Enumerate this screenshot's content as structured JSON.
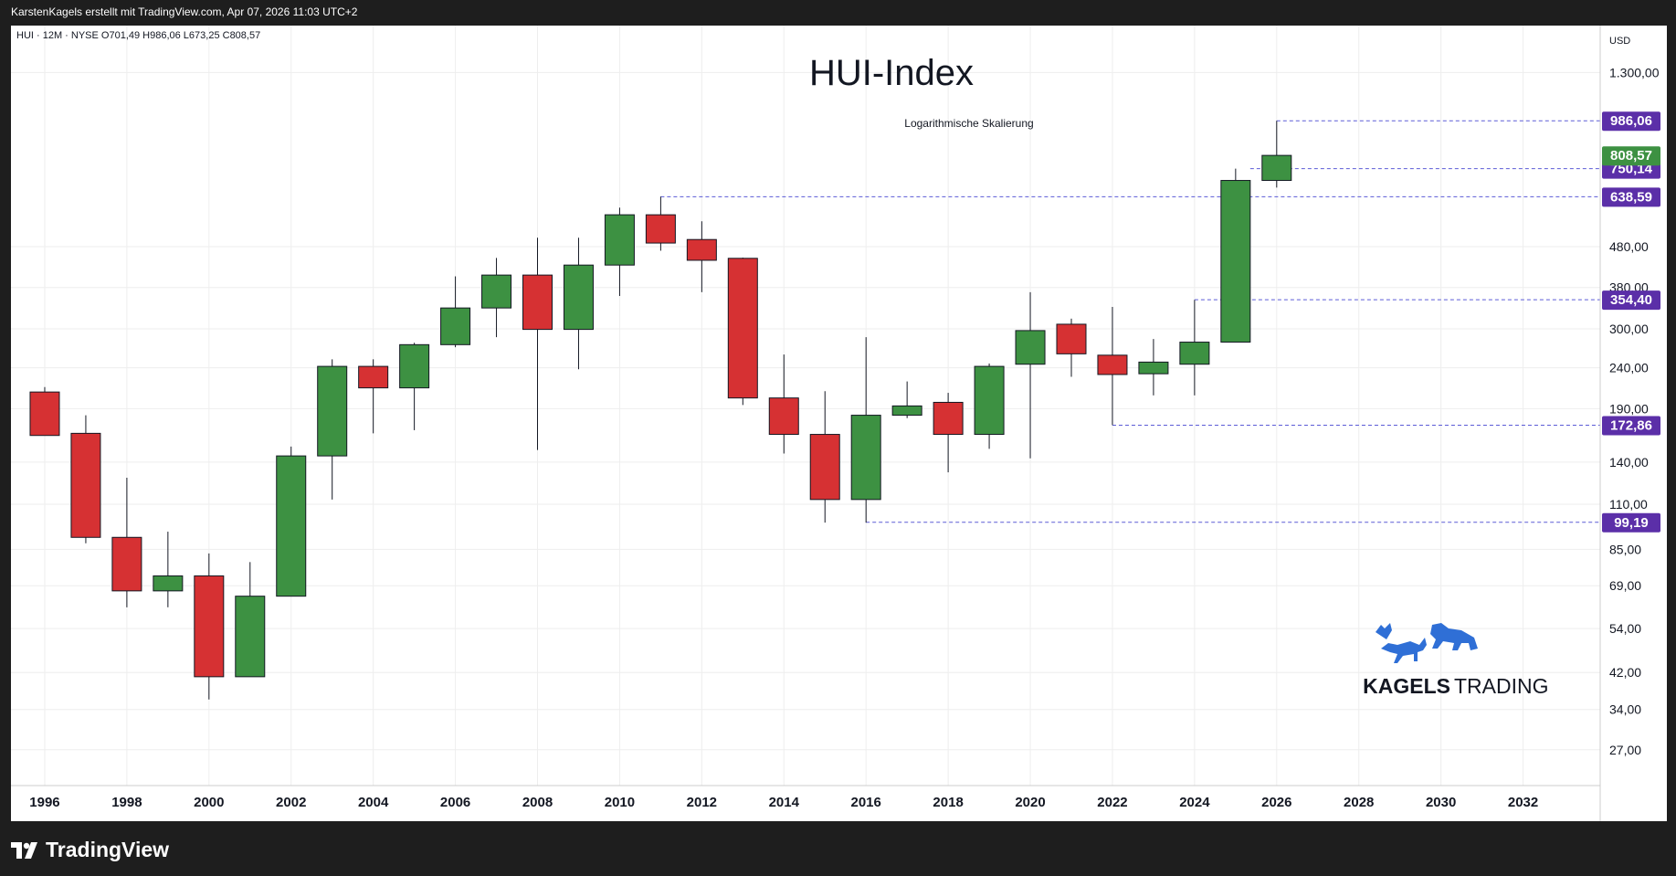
{
  "header": {
    "attribution": "KarstenKagels erstellt mit TradingView.com, Apr 07, 2026 11:03 UTC+2",
    "symbol_line": "HUI · 12M · NYSE  O701,49  H986,06  L673,25  C808,57"
  },
  "chart": {
    "title": "HUI-Index",
    "subtitle": "Logarithmische Skalierung",
    "currency": "USD"
  },
  "branding": {
    "kagels": "KAGELS TRADING",
    "kagels_word1": "KAGELS",
    "kagels_word2": "TRADING",
    "tradingview": "TradingView"
  },
  "colors": {
    "up": "#3d9142",
    "down": "#d63133",
    "price_marker": "#5b2fa8",
    "last_marker": "#3d9142",
    "grid": "#eeeeee",
    "dashed": "#5b5bd6"
  },
  "chart_data": {
    "type": "candlestick",
    "scale": "log",
    "ylim": [
      22,
      1700
    ],
    "xlim": [
      1995.4,
      2033.7
    ],
    "x_ticks": [
      "1996",
      "1998",
      "2000",
      "2002",
      "2004",
      "2006",
      "2008",
      "2010",
      "2012",
      "2014",
      "2016",
      "2018",
      "2020",
      "2022",
      "2024",
      "2026",
      "2028",
      "2030",
      "2032"
    ],
    "y_ticks": [
      {
        "value": 1300,
        "label": "1.300,00"
      },
      {
        "value": 480,
        "label": "480,00"
      },
      {
        "value": 380,
        "label": "380,00"
      },
      {
        "value": 300,
        "label": "300,00"
      },
      {
        "value": 240,
        "label": "240,00"
      },
      {
        "value": 190,
        "label": "190,00"
      },
      {
        "value": 140,
        "label": "140,00"
      },
      {
        "value": 110,
        "label": "110,00"
      },
      {
        "value": 85,
        "label": "85,00"
      },
      {
        "value": 69,
        "label": "69,00"
      },
      {
        "value": 54,
        "label": "54,00"
      },
      {
        "value": 42,
        "label": "42,00"
      },
      {
        "value": 34,
        "label": "34,00"
      },
      {
        "value": 27,
        "label": "27,00"
      }
    ],
    "candles": [
      {
        "year": 1996,
        "open": 209,
        "high": 215,
        "low": 163,
        "close": 163
      },
      {
        "year": 1997,
        "open": 165,
        "high": 183,
        "low": 88,
        "close": 91
      },
      {
        "year": 1998,
        "open": 91,
        "high": 128,
        "low": 61,
        "close": 67
      },
      {
        "year": 1999,
        "open": 67,
        "high": 94,
        "low": 61,
        "close": 73
      },
      {
        "year": 2000,
        "open": 73,
        "high": 83,
        "low": 36,
        "close": 41
      },
      {
        "year": 2001,
        "open": 41,
        "high": 79,
        "low": 41,
        "close": 65
      },
      {
        "year": 2002,
        "open": 65,
        "high": 153,
        "low": 65,
        "close": 145
      },
      {
        "year": 2003,
        "open": 145,
        "high": 252,
        "low": 113,
        "close": 242
      },
      {
        "year": 2004,
        "open": 242,
        "high": 252,
        "low": 165,
        "close": 214
      },
      {
        "year": 2005,
        "open": 214,
        "high": 277,
        "low": 168,
        "close": 274
      },
      {
        "year": 2006,
        "open": 274,
        "high": 405,
        "low": 270,
        "close": 338
      },
      {
        "year": 2007,
        "open": 338,
        "high": 450,
        "low": 286,
        "close": 408
      },
      {
        "year": 2008,
        "open": 408,
        "high": 505,
        "low": 150,
        "close": 299
      },
      {
        "year": 2009,
        "open": 299,
        "high": 505,
        "low": 238,
        "close": 432
      },
      {
        "year": 2010,
        "open": 432,
        "high": 600,
        "low": 362,
        "close": 576
      },
      {
        "year": 2011,
        "open": 576,
        "high": 639,
        "low": 469,
        "close": 490
      },
      {
        "year": 2012,
        "open": 500,
        "high": 555,
        "low": 370,
        "close": 444
      },
      {
        "year": 2013,
        "open": 449,
        "high": 451,
        "low": 194,
        "close": 202
      },
      {
        "year": 2014,
        "open": 202,
        "high": 259,
        "low": 147,
        "close": 164
      },
      {
        "year": 2015,
        "open": 164,
        "high": 210,
        "low": 99,
        "close": 113
      },
      {
        "year": 2016,
        "open": 113,
        "high": 286,
        "low": 99,
        "close": 183
      },
      {
        "year": 2017,
        "open": 183,
        "high": 222,
        "low": 180,
        "close": 193
      },
      {
        "year": 2018,
        "open": 197,
        "high": 208,
        "low": 132,
        "close": 164
      },
      {
        "year": 2019,
        "open": 164,
        "high": 246,
        "low": 151,
        "close": 242
      },
      {
        "year": 2020,
        "open": 245,
        "high": 370,
        "low": 143,
        "close": 297
      },
      {
        "year": 2021,
        "open": 308,
        "high": 318,
        "low": 228,
        "close": 260
      },
      {
        "year": 2022,
        "open": 258,
        "high": 340,
        "low": 173,
        "close": 231
      },
      {
        "year": 2023,
        "open": 232,
        "high": 283,
        "low": 205,
        "close": 248
      },
      {
        "year": 2024,
        "open": 245,
        "high": 354,
        "low": 205,
        "close": 278
      },
      {
        "year": 2025,
        "open": 278,
        "high": 750,
        "low": 278,
        "close": 701
      },
      {
        "year": 2026,
        "open": 701,
        "high": 986,
        "low": 673,
        "close": 809
      }
    ],
    "levels": [
      {
        "value": 986.06,
        "label": "986,06",
        "from": 2026
      },
      {
        "value": 750.14,
        "label": "750,14",
        "from": 2025
      },
      {
        "value": 638.59,
        "label": "638,59",
        "from": 2011
      },
      {
        "value": 354.4,
        "label": "354,40",
        "from": 2024
      },
      {
        "value": 172.86,
        "label": "172,86",
        "from": 2022
      },
      {
        "value": 99.19,
        "label": "99,19",
        "from": 2016
      }
    ],
    "last": {
      "value": 808.57,
      "label": "808,57"
    }
  }
}
